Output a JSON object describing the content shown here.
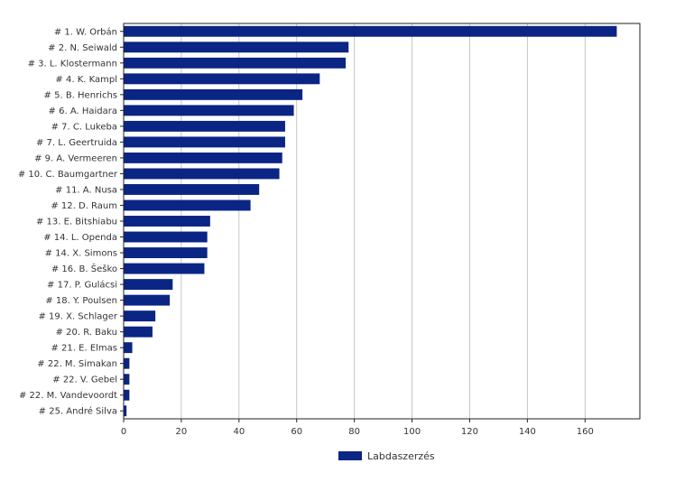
{
  "chart_data": {
    "type": "bar",
    "orientation": "horizontal",
    "categories": [
      "# 1.  W. Orbán",
      "# 2.  N. Seiwald",
      "# 3.  L. Klostermann",
      "# 4.  K. Kampl",
      "# 5.  B. Henrichs",
      "# 6.  A. Haidara",
      "# 7.  C. Lukeba",
      "# 7.  L. Geertruida",
      "# 9.  A. Vermeeren",
      "# 10.  C. Baumgartner",
      "# 11.  A. Nusa",
      "# 12.  D. Raum",
      "# 13.  E. Bitshiabu",
      "# 14.  L. Openda",
      "# 14.  X. Simons",
      "# 16.  B. Šeško",
      "# 17.  P. Gulácsi",
      "# 18.  Y. Poulsen",
      "# 19.  X. Schlager",
      "# 20.  R. Baku",
      "# 21.  E. Elmas",
      "# 22.  M. Simakan",
      "# 22.  V. Gebel",
      "# 22.  M. Vandevoordt",
      "# 25.  André Silva"
    ],
    "series": [
      {
        "name": "Labdaszerzés",
        "color": "#0a2583",
        "values": [
          171,
          78,
          77,
          68,
          62,
          59,
          56,
          56,
          55,
          54,
          47,
          44,
          30,
          29,
          29,
          28,
          17,
          16,
          11,
          10,
          3,
          2,
          2,
          2,
          1
        ]
      }
    ],
    "title": "",
    "xlabel": "",
    "ylabel": "",
    "xlim": [
      0,
      179
    ],
    "xticks": [
      0,
      20,
      40,
      60,
      80,
      100,
      120,
      140,
      160
    ],
    "grid": "vertical",
    "legend_position": "bottom-center"
  }
}
